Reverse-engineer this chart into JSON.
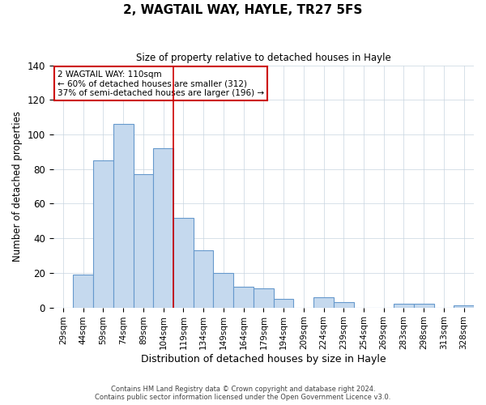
{
  "title": "2, WAGTAIL WAY, HAYLE, TR27 5FS",
  "subtitle": "Size of property relative to detached houses in Hayle",
  "xlabel": "Distribution of detached houses by size in Hayle",
  "ylabel": "Number of detached properties",
  "bar_labels": [
    "29sqm",
    "44sqm",
    "59sqm",
    "74sqm",
    "89sqm",
    "104sqm",
    "119sqm",
    "134sqm",
    "149sqm",
    "164sqm",
    "179sqm",
    "194sqm",
    "209sqm",
    "224sqm",
    "239sqm",
    "254sqm",
    "269sqm",
    "283sqm",
    "298sqm",
    "313sqm",
    "328sqm"
  ],
  "bar_values": [
    0,
    19,
    85,
    106,
    77,
    92,
    52,
    33,
    20,
    12,
    11,
    5,
    0,
    6,
    3,
    0,
    0,
    2,
    2,
    0,
    1
  ],
  "bar_color": "#c5d9ee",
  "bar_edge_color": "#6699cc",
  "ylim": [
    0,
    140
  ],
  "yticks": [
    0,
    20,
    40,
    60,
    80,
    100,
    120,
    140
  ],
  "vline_color": "#cc0000",
  "annotation_title": "2 WAGTAIL WAY: 110sqm",
  "annotation_line1": "← 60% of detached houses are smaller (312)",
  "annotation_line2": "37% of semi-detached houses are larger (196) →",
  "annotation_box_color": "#ffffff",
  "annotation_box_edge_color": "#cc0000",
  "footer_line1": "Contains HM Land Registry data © Crown copyright and database right 2024.",
  "footer_line2": "Contains public sector information licensed under the Open Government Licence v3.0.",
  "background_color": "#ffffff",
  "grid_color": "#c8d4e0"
}
